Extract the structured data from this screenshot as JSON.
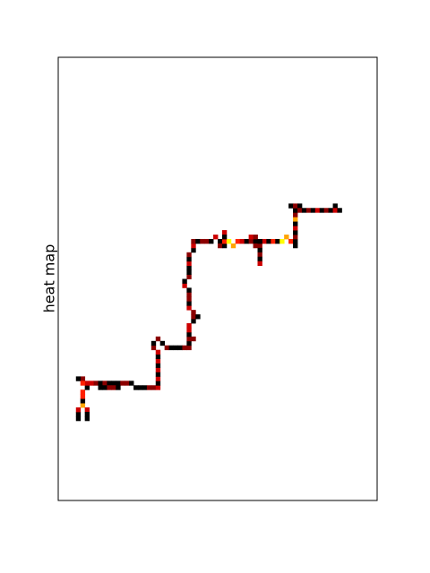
{
  "chart_data": {
    "type": "heatmap",
    "title": "",
    "xlabel": "",
    "ylabel": "heat map",
    "grid": false,
    "ticks": false,
    "legend": "none",
    "colormap": [
      "#000000",
      "#8b0000",
      "#cc0000",
      "#ff2000",
      "#ffa500",
      "#ffff00"
    ],
    "value_range": [
      0,
      5
    ],
    "grid_size": [
      72,
      100
    ],
    "paths": [
      {
        "cells": [
          [
            4,
            81
          ],
          [
            4,
            79
          ],
          [
            5,
            78
          ],
          [
            6,
            79
          ],
          [
            6,
            81
          ]
        ],
        "values": [
          0,
          2,
          4,
          2,
          0
        ]
      },
      {
        "cells": [
          [
            5,
            78
          ],
          [
            5,
            75
          ],
          [
            6,
            73
          ],
          [
            5,
            72
          ],
          [
            4,
            72
          ]
        ],
        "values": [
          3,
          3,
          2,
          1,
          0
        ]
      },
      {
        "cells": [
          [
            5,
            73
          ],
          [
            8,
            73
          ],
          [
            12,
            73
          ],
          [
            15,
            73
          ],
          [
            18,
            74
          ],
          [
            21,
            74
          ]
        ],
        "values": [
          3,
          1,
          0,
          1,
          0,
          1
        ]
      },
      {
        "cells": [
          [
            9,
            74
          ],
          [
            12,
            74
          ],
          [
            13,
            74
          ]
        ],
        "values": [
          0,
          1,
          0
        ]
      },
      {
        "cells": [
          [
            21,
            74
          ],
          [
            22,
            74
          ],
          [
            22,
            70
          ],
          [
            22,
            66
          ],
          [
            21,
            65
          ],
          [
            21,
            64
          ],
          [
            22,
            63
          ],
          [
            23,
            64
          ],
          [
            24,
            65
          ],
          [
            26,
            65
          ],
          [
            29,
            65
          ],
          [
            29,
            64
          ],
          [
            30,
            63
          ]
        ],
        "values": [
          2,
          2,
          2,
          2,
          1,
          0,
          1,
          0,
          1,
          0,
          1,
          0,
          1
        ]
      },
      {
        "cells": [
          [
            29,
            63
          ],
          [
            29,
            60
          ],
          [
            30,
            58
          ],
          [
            31,
            58
          ],
          [
            30,
            57
          ],
          [
            29,
            56
          ],
          [
            29,
            53
          ],
          [
            28,
            51
          ],
          [
            28,
            50
          ],
          [
            29,
            49
          ],
          [
            29,
            48
          ]
        ],
        "values": [
          1,
          2,
          1,
          0,
          1,
          2,
          1,
          2,
          0,
          1,
          0
        ]
      },
      {
        "cells": [
          [
            29,
            48
          ],
          [
            29,
            46
          ],
          [
            29,
            44
          ],
          [
            30,
            42
          ],
          [
            30,
            41
          ],
          [
            31,
            41
          ],
          [
            32,
            41
          ]
        ],
        "values": [
          1,
          2,
          1,
          2,
          1,
          0,
          1
        ]
      },
      {
        "cells": [
          [
            36,
            41
          ],
          [
            36,
            42
          ],
          [
            37,
            42
          ]
        ],
        "values": [
          0,
          1,
          0
        ]
      },
      {
        "cells": [
          [
            32,
            41
          ],
          [
            33,
            41
          ],
          [
            35,
            40
          ],
          [
            37,
            41
          ],
          [
            38,
            41
          ],
          [
            39,
            42
          ],
          [
            40,
            41
          ],
          [
            41,
            41
          ],
          [
            43,
            41
          ],
          [
            44,
            41
          ],
          [
            45,
            42
          ],
          [
            46,
            41
          ]
        ],
        "values": [
          0,
          1,
          2,
          3,
          5,
          4,
          3,
          2,
          1,
          0,
          1,
          2
        ]
      },
      {
        "cells": [
          [
            44,
            42
          ],
          [
            45,
            42
          ],
          [
            45,
            44
          ],
          [
            45,
            46
          ]
        ],
        "values": [
          1,
          0,
          1,
          2
        ]
      },
      {
        "cells": [
          [
            43,
            40
          ],
          [
            44,
            40
          ],
          [
            45,
            41
          ]
        ],
        "values": [
          2,
          1,
          0
        ]
      },
      {
        "cells": [
          [
            46,
            41
          ],
          [
            48,
            41
          ],
          [
            50,
            41
          ],
          [
            51,
            40
          ],
          [
            52,
            41
          ],
          [
            53,
            42
          ],
          [
            53,
            40
          ],
          [
            53,
            38
          ],
          [
            53,
            36
          ],
          [
            53,
            35
          ],
          [
            52,
            33
          ],
          [
            53,
            33
          ],
          [
            54,
            33
          ],
          [
            54,
            34
          ]
        ],
        "values": [
          2,
          3,
          5,
          4,
          3,
          0,
          1,
          2,
          4,
          1,
          0,
          1,
          0,
          1
        ]
      },
      {
        "cells": [
          [
            54,
            34
          ],
          [
            56,
            34
          ],
          [
            58,
            34
          ],
          [
            60,
            34
          ],
          [
            62,
            33
          ],
          [
            62,
            34
          ],
          [
            63,
            34
          ]
        ],
        "values": [
          2,
          1,
          2,
          1,
          0,
          2,
          0
        ]
      },
      {
        "cells": [
          [
            37,
            39
          ],
          [
            37,
            40
          ]
        ],
        "values": [
          2,
          0
        ]
      }
    ]
  }
}
